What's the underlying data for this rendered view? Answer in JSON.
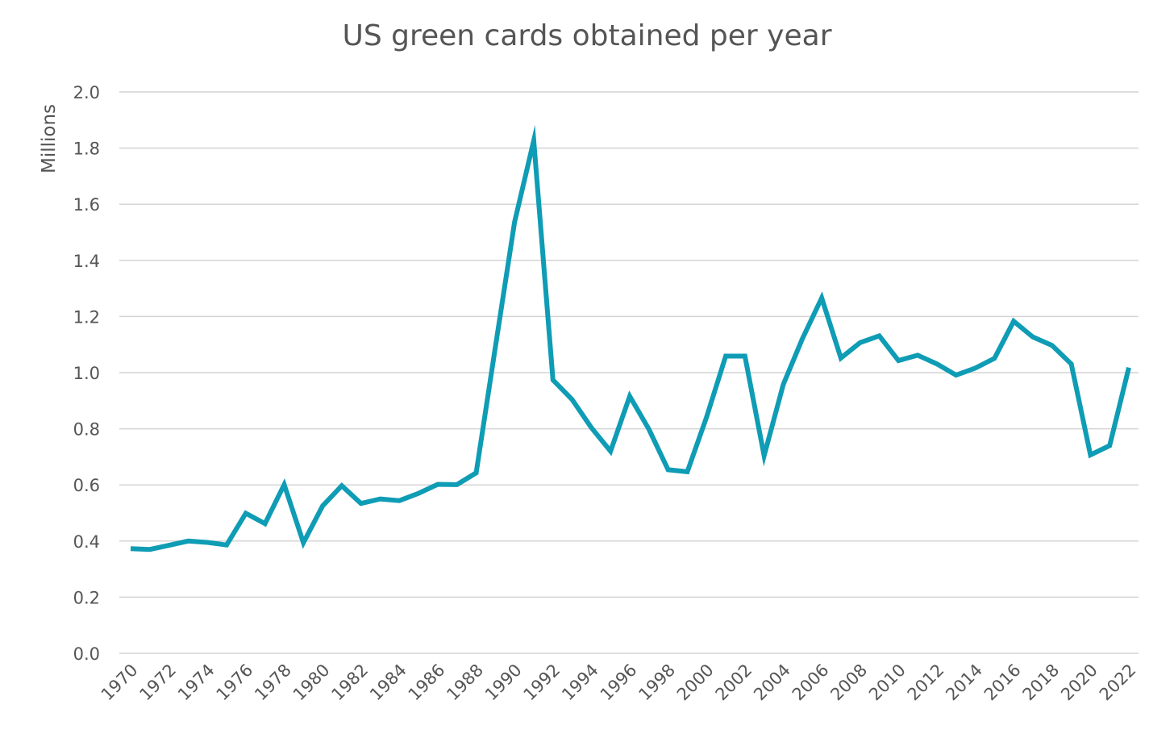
{
  "chart_data": {
    "type": "line",
    "title": "US green cards obtained per year",
    "xlabel": "",
    "ylabel": "Millions",
    "ylim": [
      0,
      2.0
    ],
    "y_ticks": [
      "0.0",
      "0.2",
      "0.4",
      "0.6",
      "0.8",
      "1.0",
      "1.2",
      "1.4",
      "1.6",
      "1.8",
      "2.0"
    ],
    "x_ticks": [
      "1970",
      "1972",
      "1974",
      "1976",
      "1978",
      "1980",
      "1982",
      "1984",
      "1986",
      "1988",
      "1990",
      "1992",
      "1994",
      "1996",
      "1998",
      "2000",
      "2002",
      "2004",
      "2006",
      "2008",
      "2010",
      "2012",
      "2014",
      "2016",
      "2018",
      "2020",
      "2022"
    ],
    "grid": true,
    "legend": "none",
    "line_color": "#0f9cb5",
    "series": [
      {
        "x": [
          1970,
          1971,
          1972,
          1973,
          1974,
          1975,
          1976,
          1977,
          1978,
          1979,
          1980,
          1981,
          1982,
          1983,
          1984,
          1985,
          1986,
          1987,
          1988,
          1989,
          1990,
          1991,
          1992,
          1993,
          1994,
          1995,
          1996,
          1997,
          1998,
          1999,
          2000,
          2001,
          2002,
          2003,
          2004,
          2005,
          2006,
          2007,
          2008,
          2009,
          2010,
          2011,
          2012,
          2013,
          2014,
          2015,
          2016,
          2017,
          2018,
          2019,
          2020,
          2021,
          2022
        ],
        "values": [
          0.373,
          0.37,
          0.385,
          0.4,
          0.395,
          0.386,
          0.499,
          0.462,
          0.601,
          0.394,
          0.525,
          0.597,
          0.534,
          0.55,
          0.544,
          0.57,
          0.602,
          0.601,
          0.643,
          1.091,
          1.536,
          1.827,
          0.974,
          0.904,
          0.804,
          0.72,
          0.916,
          0.798,
          0.654,
          0.647,
          0.841,
          1.059,
          1.059,
          0.704,
          0.958,
          1.122,
          1.266,
          1.052,
          1.107,
          1.131,
          1.043,
          1.062,
          1.031,
          0.991,
          1.016,
          1.051,
          1.183,
          1.127,
          1.097,
          1.031,
          0.707,
          0.74,
          1.018
        ]
      }
    ]
  }
}
